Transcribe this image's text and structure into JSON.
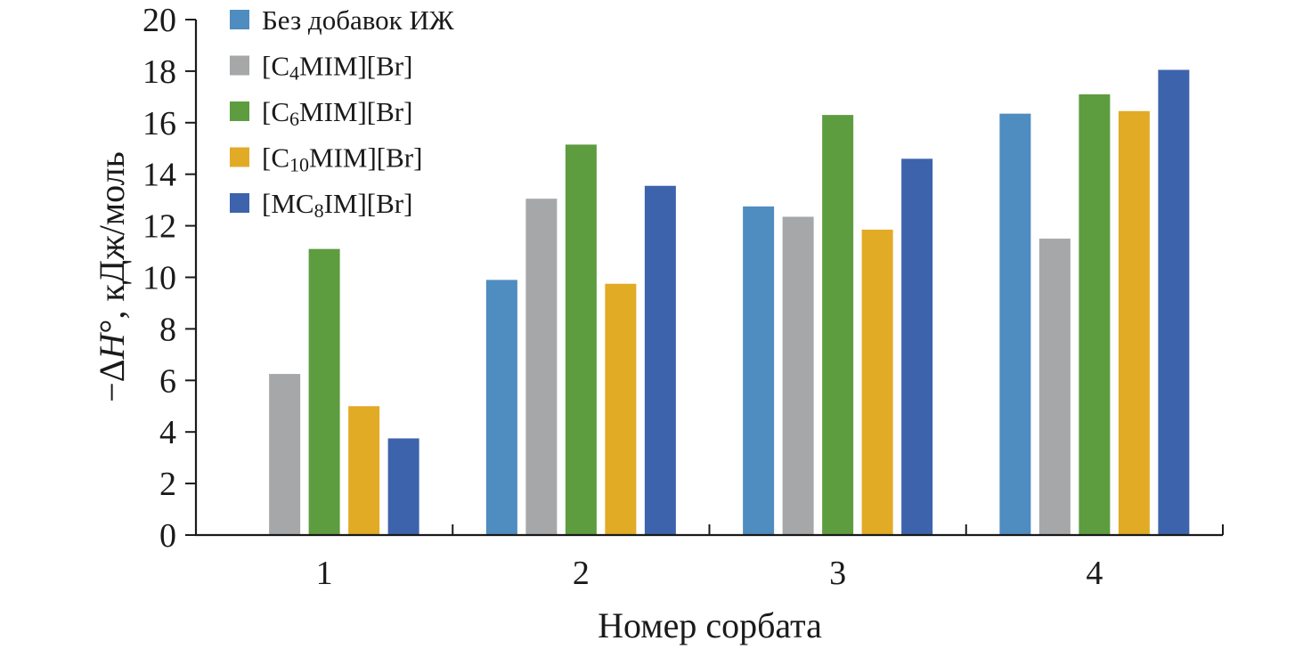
{
  "chart_data": {
    "type": "bar",
    "title": "",
    "xlabel": "Номер сорбата",
    "ylabel": "−ΔH°, кДж/моль",
    "ylabel_parts": {
      "prefix": "−Δ",
      "symbol": "H",
      "suffix": "°, кДж/моль"
    },
    "categories": [
      "1",
      "2",
      "3",
      "4"
    ],
    "ylim": [
      0,
      20
    ],
    "yticks": [
      0,
      2,
      4,
      6,
      8,
      10,
      12,
      14,
      16,
      18,
      20
    ],
    "legend_position": "top-left",
    "series": [
      {
        "name": "Без добавок ИЖ",
        "label_parts": [
          "Без добавок ИЖ"
        ],
        "color": "#4f8cc0",
        "values": [
          0,
          9.9,
          12.75,
          16.35
        ]
      },
      {
        "name": "[C4MIM][Br]",
        "label_parts": [
          "[C",
          "4",
          "MIM][Br]"
        ],
        "color": "#a6a7a9",
        "values": [
          6.25,
          13.05,
          12.35,
          11.5
        ]
      },
      {
        "name": "[C6MIM][Br]",
        "label_parts": [
          "[C",
          "6",
          "MIM][Br]"
        ],
        "color": "#5e9c40",
        "values": [
          11.1,
          15.15,
          16.3,
          17.1
        ]
      },
      {
        "name": "[C10MIM][Br]",
        "label_parts": [
          "[C",
          "10",
          "MIM][Br]"
        ],
        "color": "#e2ab26",
        "values": [
          5.0,
          9.75,
          11.85,
          16.45
        ]
      },
      {
        "name": "[MC8IM][Br]",
        "label_parts": [
          "[MC",
          "8",
          "IM][Br]"
        ],
        "color": "#3e63ad",
        "values": [
          3.75,
          13.55,
          14.6,
          18.05
        ]
      }
    ]
  }
}
